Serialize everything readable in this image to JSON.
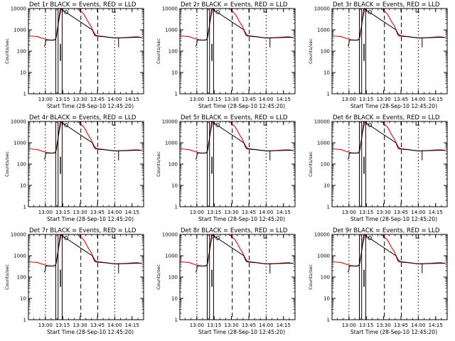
{
  "page": {
    "background": "#ffffff",
    "events_color": "#000000",
    "lld_color": "#ff0000"
  },
  "chart_data": [
    {
      "type": "line",
      "title": "Det 1r BLACK = Events, RED = LLD",
      "xlabel": "Start Time (28-Sep-10 12:45:20)",
      "ylabel": "Counts/sec",
      "xlim": [
        "12:45:20",
        "14:25:00"
      ],
      "ylim": [
        1,
        10000
      ],
      "y_scale": "log",
      "x_tick_labels": [
        "13:00",
        "13:15",
        "13:30",
        "13:45",
        "14:00",
        "14:15"
      ],
      "y_tick_labels": [
        "1",
        "10",
        "100",
        "1000",
        "10000"
      ],
      "series": [
        {
          "name": "Events",
          "color": "#000000"
        },
        {
          "name": "LLD",
          "color": "#ff0000"
        }
      ]
    },
    {
      "type": "line",
      "title": "Det 2r BLACK = Events, RED = LLD",
      "xlabel": "Start Time (28-Sep-10 12:45:20)",
      "ylabel": "Counts/sec",
      "xlim": [
        "12:45:20",
        "14:25:00"
      ],
      "ylim": [
        1,
        10000
      ],
      "y_scale": "log",
      "x_tick_labels": [
        "13:00",
        "13:15",
        "13:30",
        "13:45",
        "14:00",
        "14:15"
      ],
      "y_tick_labels": [
        "1",
        "10",
        "100",
        "1000",
        "10000"
      ],
      "series": [
        {
          "name": "Events",
          "color": "#000000"
        },
        {
          "name": "LLD",
          "color": "#ff0000"
        }
      ]
    },
    {
      "type": "line",
      "title": "Det 3r BLACK = Events, RED = LLD",
      "xlabel": "Start Time (28-Sep-10 12:45:20)",
      "ylabel": "Counts/sec",
      "xlim": [
        "12:45:20",
        "14:25:00"
      ],
      "ylim": [
        1,
        10000
      ],
      "y_scale": "log",
      "x_tick_labels": [
        "13:00",
        "13:15",
        "13:30",
        "13:45",
        "14:00",
        "14:15"
      ],
      "y_tick_labels": [
        "1",
        "10",
        "100",
        "1000",
        "10000"
      ],
      "series": [
        {
          "name": "Events",
          "color": "#000000"
        },
        {
          "name": "LLD",
          "color": "#ff0000"
        }
      ]
    },
    {
      "type": "line",
      "title": "Det 4r BLACK = Events, RED = LLD",
      "xlabel": "Start Time (28-Sep-10 12:45:20)",
      "ylabel": "Counts/sec",
      "xlim": [
        "12:45:20",
        "14:25:00"
      ],
      "ylim": [
        1,
        10000
      ],
      "y_scale": "log",
      "x_tick_labels": [
        "13:00",
        "13:15",
        "13:30",
        "13:45",
        "14:00",
        "14:15"
      ],
      "y_tick_labels": [
        "1",
        "10",
        "100",
        "1000",
        "10000"
      ],
      "series": [
        {
          "name": "Events",
          "color": "#000000"
        },
        {
          "name": "LLD",
          "color": "#ff0000"
        }
      ]
    },
    {
      "type": "line",
      "title": "Det 5r BLACK = Events, RED = LLD",
      "xlabel": "Start Time (28-Sep-10 12:45:20)",
      "ylabel": "Counts/sec",
      "xlim": [
        "12:45:20",
        "14:25:00"
      ],
      "ylim": [
        1,
        10000
      ],
      "y_scale": "log",
      "x_tick_labels": [
        "13:00",
        "13:15",
        "13:30",
        "13:45",
        "14:00",
        "14:15"
      ],
      "y_tick_labels": [
        "1",
        "10",
        "100",
        "1000",
        "10000"
      ],
      "series": [
        {
          "name": "Events",
          "color": "#000000"
        },
        {
          "name": "LLD",
          "color": "#ff0000"
        }
      ]
    },
    {
      "type": "line",
      "title": "Det 6r BLACK = Events, RED = LLD",
      "xlabel": "Start Time (28-Sep-10 12:45:20)",
      "ylabel": "Counts/sec",
      "xlim": [
        "12:45:20",
        "14:25:00"
      ],
      "ylim": [
        1,
        10000
      ],
      "y_scale": "log",
      "x_tick_labels": [
        "13:00",
        "13:15",
        "13:30",
        "13:45",
        "14:00",
        "14:15"
      ],
      "y_tick_labels": [
        "1",
        "10",
        "100",
        "1000",
        "10000"
      ],
      "series": [
        {
          "name": "Events",
          "color": "#000000"
        },
        {
          "name": "LLD",
          "color": "#ff0000"
        }
      ]
    },
    {
      "type": "line",
      "title": "Det 7r BLACK = Events, RED = LLD",
      "xlabel": "Start Time (28-Sep-10 12:45:20)",
      "ylabel": "Counts/sec",
      "xlim": [
        "12:45:20",
        "14:25:00"
      ],
      "ylim": [
        1,
        10000
      ],
      "y_scale": "log",
      "x_tick_labels": [
        "13:00",
        "13:15",
        "13:30",
        "13:45",
        "14:00",
        "14:15"
      ],
      "y_tick_labels": [
        "1",
        "10",
        "100",
        "1000",
        "10000"
      ],
      "series": [
        {
          "name": "Events",
          "color": "#000000"
        },
        {
          "name": "LLD",
          "color": "#ff0000"
        }
      ]
    },
    {
      "type": "line",
      "title": "Det 8r BLACK = Events, RED = LLD",
      "xlabel": "Start Time (28-Sep-10 12:45:20)",
      "ylabel": "Counts/sec",
      "xlim": [
        "12:45:20",
        "14:25:00"
      ],
      "ylim": [
        1,
        10000
      ],
      "y_scale": "log",
      "x_tick_labels": [
        "13:00",
        "13:15",
        "13:30",
        "13:45",
        "14:00",
        "14:15"
      ],
      "y_tick_labels": [
        "1",
        "10",
        "100",
        "1000",
        "10000"
      ],
      "series": [
        {
          "name": "Events",
          "color": "#000000"
        },
        {
          "name": "LLD",
          "color": "#ff0000"
        }
      ]
    },
    {
      "type": "line",
      "title": "Det 9r BLACK = Events, RED = LLD",
      "xlabel": "Start Time (28-Sep-10 12:45:20)",
      "ylabel": "Counts/sec",
      "xlim": [
        "12:45:20",
        "14:25:00"
      ],
      "ylim": [
        1,
        10000
      ],
      "y_scale": "log",
      "x_tick_labels": [
        "13:00",
        "13:15",
        "13:30",
        "13:45",
        "14:00",
        "14:15"
      ],
      "y_tick_labels": [
        "1",
        "10",
        "100",
        "1000",
        "10000"
      ],
      "series": [
        {
          "name": "Events",
          "color": "#000000"
        },
        {
          "name": "LLD",
          "color": "#ff0000"
        }
      ]
    }
  ]
}
